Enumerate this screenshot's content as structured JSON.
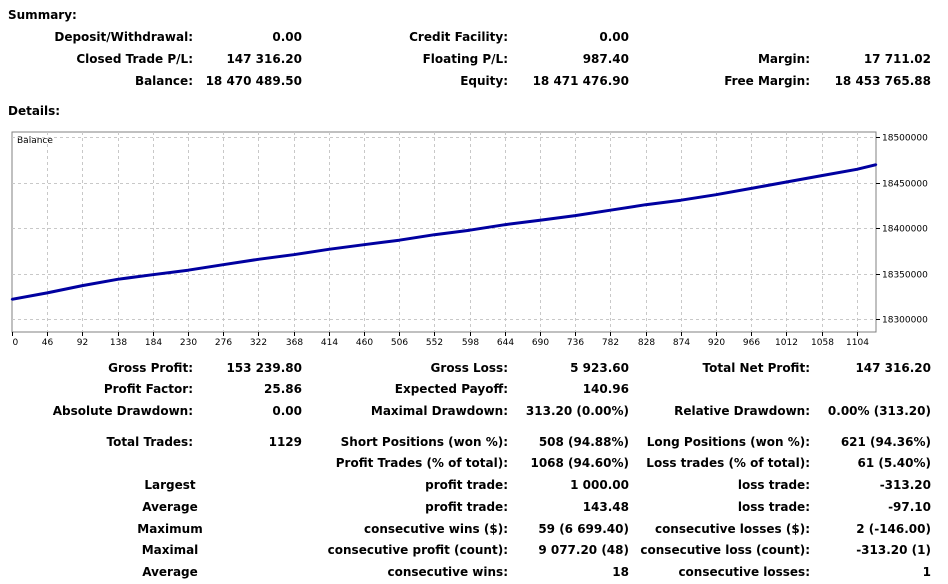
{
  "summary": {
    "heading": "Summary:",
    "deposit_withdrawal": {
      "label": "Deposit/Withdrawal:",
      "value": "0.00"
    },
    "credit_facility": {
      "label": "Credit Facility:",
      "value": "0.00"
    },
    "closed_trade_pl": {
      "label": "Closed Trade P/L:",
      "value": "147 316.20"
    },
    "floating_pl": {
      "label": "Floating P/L:",
      "value": "987.40"
    },
    "margin": {
      "label": "Margin:",
      "value": "17 711.02"
    },
    "balance": {
      "label": "Balance:",
      "value": "18 470 489.50"
    },
    "equity": {
      "label": "Equity:",
      "value": "18 471 476.90"
    },
    "free_margin": {
      "label": "Free Margin:",
      "value": "18 453 765.88"
    }
  },
  "details": {
    "heading": "Details:",
    "chart_label": "Balance"
  },
  "chart_data": {
    "type": "line",
    "title": "Balance",
    "x_ticks": [
      "0",
      "46",
      "92",
      "138",
      "184",
      "230",
      "276",
      "322",
      "368",
      "414",
      "460",
      "506",
      "552",
      "598",
      "644",
      "690",
      "736",
      "782",
      "828",
      "874",
      "920",
      "966",
      "1012",
      "1058",
      "1104"
    ],
    "y_ticks": [
      "18500000",
      "18450000",
      "18400000",
      "18350000",
      "18300000"
    ],
    "xlim": [
      0,
      1129
    ],
    "ylim": [
      18286000,
      18506000
    ],
    "grid": true,
    "series": [
      {
        "color": "#0000a0",
        "x": [
          0,
          46,
          92,
          138,
          184,
          230,
          276,
          322,
          368,
          414,
          460,
          506,
          552,
          598,
          644,
          690,
          736,
          782,
          828,
          874,
          920,
          966,
          1012,
          1058,
          1104,
          1129
        ],
        "y": [
          18322000,
          18329000,
          18337000,
          18344000,
          18349000,
          18354000,
          18360000,
          18366000,
          18371000,
          18377000,
          18382000,
          18387000,
          18393000,
          18398000,
          18404000,
          18409000,
          18414000,
          18420000,
          18426000,
          18431000,
          18437000,
          18444000,
          18451000,
          18458000,
          18465000,
          18470000
        ]
      }
    ]
  },
  "stats": {
    "gross_profit": {
      "label": "Gross Profit:",
      "value": "153 239.80"
    },
    "gross_loss": {
      "label": "Gross Loss:",
      "value": "5 923.60"
    },
    "total_net_profit": {
      "label": "Total Net Profit:",
      "value": "147 316.20"
    },
    "profit_factor": {
      "label": "Profit Factor:",
      "value": "25.86"
    },
    "expected_payoff": {
      "label": "Expected Payoff:",
      "value": "140.96"
    },
    "absolute_drawdown": {
      "label": "Absolute Drawdown:",
      "value": "0.00"
    },
    "maximal_drawdown": {
      "label": "Maximal Drawdown:",
      "value": "313.20 (0.00%)"
    },
    "relative_drawdown": {
      "label": "Relative Drawdown:",
      "value": "0.00% (313.20)"
    },
    "total_trades": {
      "label": "Total Trades:",
      "value": "1129"
    },
    "short_positions": {
      "label": "Short Positions (won %):",
      "value": "508 (94.88%)"
    },
    "long_positions": {
      "label": "Long Positions (won %):",
      "value": "621 (94.36%)"
    },
    "profit_trades": {
      "label": "Profit Trades (% of total):",
      "value": "1068 (94.60%)"
    },
    "loss_trades": {
      "label": "Loss trades (% of total):",
      "value": "61 (5.40%)"
    },
    "largest": {
      "label": "Largest",
      "profit_label": "profit trade:",
      "profit_value": "1 000.00",
      "loss_label": "loss trade:",
      "loss_value": "-313.20"
    },
    "average": {
      "label": "Average",
      "profit_label": "profit trade:",
      "profit_value": "143.48",
      "loss_label": "loss trade:",
      "loss_value": "-97.10"
    },
    "maximum": {
      "label": "Maximum",
      "profit_label": "consecutive wins ($):",
      "profit_value": "59 (6 699.40)",
      "loss_label": "consecutive losses ($):",
      "loss_value": "2 (-146.00)"
    },
    "maximal": {
      "label": "Maximal",
      "profit_label": "consecutive profit (count):",
      "profit_value": "9 077.20 (48)",
      "loss_label": "consecutive loss (count):",
      "loss_value": "-313.20 (1)"
    },
    "average_consec": {
      "label": "Average",
      "profit_label": "consecutive wins:",
      "profit_value": "18",
      "loss_label": "consecutive losses:",
      "loss_value": "1"
    }
  }
}
